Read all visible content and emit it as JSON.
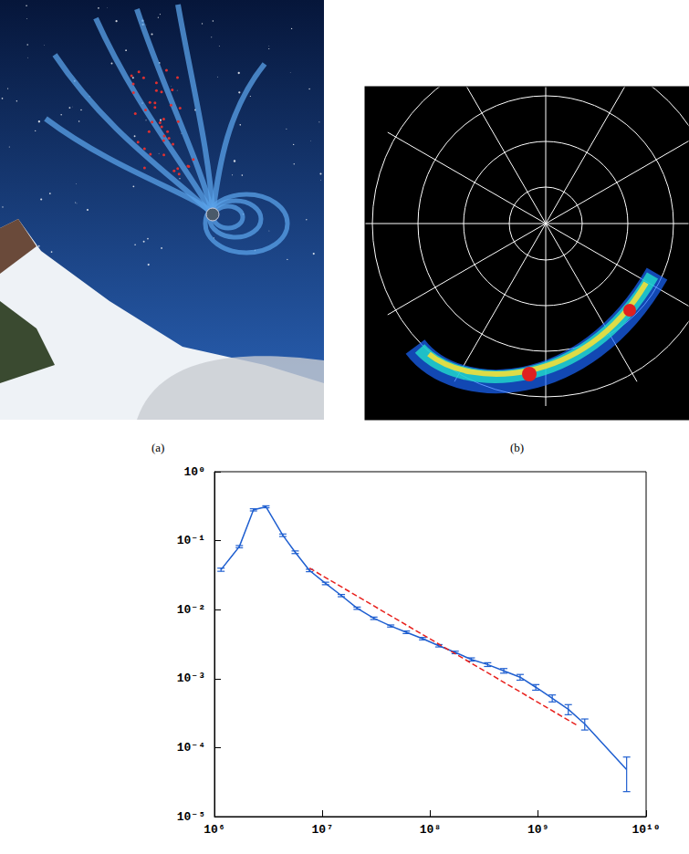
{
  "panels": {
    "a": "(a)",
    "b": "(b)"
  },
  "chart_data": {
    "type": "line",
    "log": true,
    "grid": false,
    "xlim": [
      1000000,
      10000000000
    ],
    "ylim": [
      1e-05,
      1
    ],
    "xticks": [
      {
        "value": 1000000,
        "label": "10⁶"
      },
      {
        "value": 10000000,
        "label": "10⁷"
      },
      {
        "value": 100000000,
        "label": "10⁸"
      },
      {
        "value": 1000000000,
        "label": "10⁹"
      },
      {
        "value": 10000000000,
        "label": "10¹⁰"
      }
    ],
    "yticks": [
      {
        "value": 1e-05,
        "label": "10⁻⁵"
      },
      {
        "value": 0.0001,
        "label": "10⁻⁴"
      },
      {
        "value": 0.001,
        "label": "10⁻³"
      },
      {
        "value": 0.01,
        "label": "10⁻²"
      },
      {
        "value": 0.1,
        "label": "10⁻¹"
      },
      {
        "value": 1,
        "label": "10⁰"
      }
    ],
    "series": [
      {
        "type": "line",
        "color": "#1f5fd0",
        "marker": "none",
        "line_style": "solid",
        "x": [
          1150000,
          1700000,
          2300000,
          3000000,
          4300000,
          5600000,
          7600000,
          10700000,
          15000000,
          21000000,
          30000000,
          43000000,
          60000000,
          85000000,
          120000000,
          170000000,
          240000000,
          340000000,
          480000000,
          680000000,
          950000000,
          1350000000,
          1900000000,
          2700000000,
          6600000000
        ],
        "values": [
          0.038,
          0.082,
          0.28,
          0.31,
          0.12,
          0.068,
          0.037,
          0.024,
          0.016,
          0.0105,
          0.0075,
          0.0058,
          0.0047,
          0.0038,
          0.003,
          0.0024,
          0.0019,
          0.0016,
          0.0013,
          0.00105,
          0.00075,
          0.00052,
          0.00036,
          0.00022,
          4.8e-05
        ],
        "errors": [
          0.002,
          0.003,
          0.01,
          0.01,
          0.005,
          0.003,
          0.0015,
          0.001,
          0.0006,
          0.0004,
          0.0003,
          0.0002,
          0.0002,
          0.00015,
          0.00012,
          0.0001,
          0.0001,
          0.0001,
          0.0001,
          0.0001,
          7e-05,
          6e-05,
          6e-05,
          4e-05,
          2.5e-05
        ]
      },
      {
        "type": "line",
        "color": "#e8201c",
        "marker": "none",
        "line_style": "dashed",
        "x": [
          7600000,
          2300000000
        ],
        "values": [
          0.04,
          0.00021
        ]
      }
    ]
  }
}
